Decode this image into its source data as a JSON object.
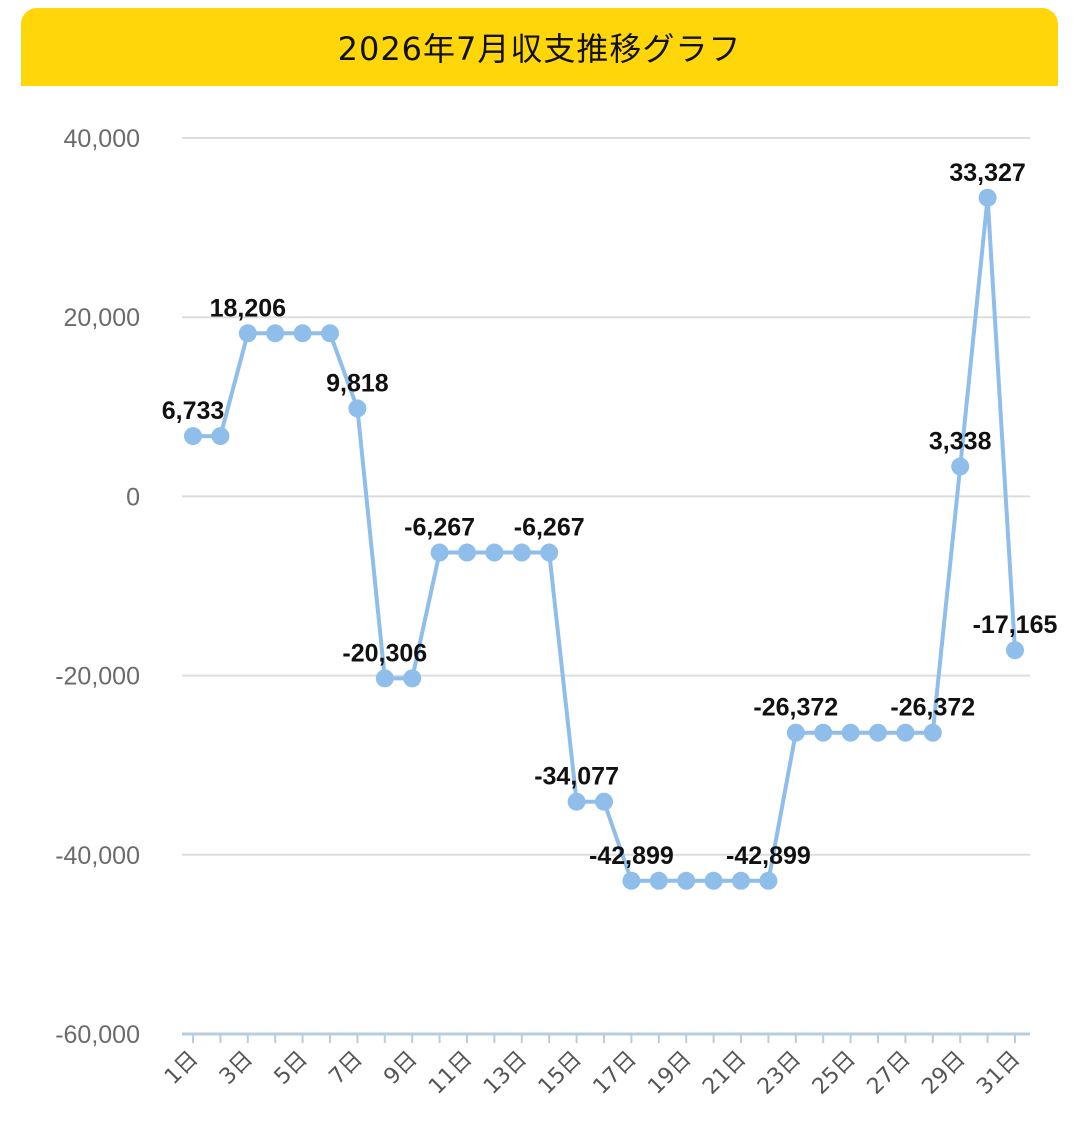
{
  "chart_data": {
    "type": "line",
    "title": "2026年7月収支推移グラフ",
    "xlabel": "",
    "ylabel": "",
    "ylim": [
      -60000,
      40000
    ],
    "yticks": [
      40000,
      20000,
      0,
      -20000,
      -40000,
      -60000
    ],
    "ytick_labels": [
      "40,000",
      "20,000",
      "0",
      "-20,000",
      "-40,000",
      "-60,000"
    ],
    "categories": [
      "1日",
      "2日",
      "3日",
      "4日",
      "5日",
      "6日",
      "7日",
      "8日",
      "9日",
      "10日",
      "11日",
      "12日",
      "13日",
      "14日",
      "15日",
      "16日",
      "17日",
      "18日",
      "19日",
      "20日",
      "21日",
      "22日",
      "23日",
      "24日",
      "25日",
      "26日",
      "27日",
      "28日",
      "29日",
      "30日",
      "31日"
    ],
    "xtick_labels": [
      "1日",
      "3日",
      "5日",
      "7日",
      "9日",
      "11日",
      "13日",
      "15日",
      "17日",
      "19日",
      "21日",
      "23日",
      "25日",
      "27日",
      "29日",
      "31日"
    ],
    "series": [
      {
        "values": [
          6733,
          6733,
          18206,
          18206,
          18206,
          18206,
          9818,
          -20306,
          -20306,
          -6267,
          -6267,
          -6267,
          -6267,
          -6267,
          -34077,
          -34077,
          -42899,
          -42899,
          -42899,
          -42899,
          -42899,
          -42899,
          -26372,
          -26372,
          -26372,
          -26372,
          -26372,
          -26372,
          3338,
          33327,
          -17165
        ]
      }
    ],
    "data_labels": [
      {
        "day": 1,
        "text": "6,733"
      },
      {
        "day": 3,
        "text": "18,206"
      },
      {
        "day": 7,
        "text": "9,818"
      },
      {
        "day": 8,
        "text": "-20,306"
      },
      {
        "day": 10,
        "text": "-6,267"
      },
      {
        "day": 14,
        "text": "-6,267"
      },
      {
        "day": 15,
        "text": "-34,077"
      },
      {
        "day": 17,
        "text": "-42,899"
      },
      {
        "day": 22,
        "text": "-42,899"
      },
      {
        "day": 23,
        "text": "-26,372"
      },
      {
        "day": 28,
        "text": "-26,372"
      },
      {
        "day": 29,
        "text": "3,338"
      },
      {
        "day": 30,
        "text": "33,327"
      },
      {
        "day": 31,
        "text": "-17,165"
      }
    ],
    "grid": true,
    "legend": "none",
    "colors": {
      "line": "#8fbeeb",
      "point": "#8fbeeb",
      "grid": "#dddddd",
      "axis": "#b7cde0",
      "title_bg": "#ffd60a"
    }
  }
}
